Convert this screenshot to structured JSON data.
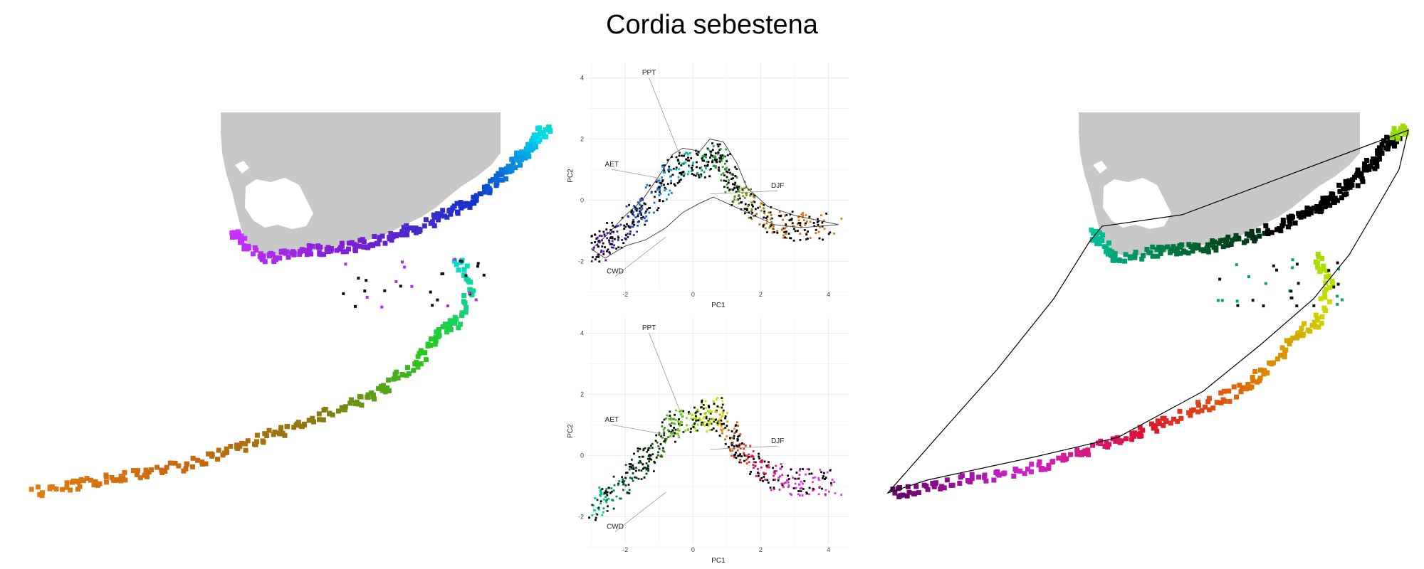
{
  "title": "Cordia sebestena",
  "colors": {
    "land": "#c8c8c8",
    "grid": "#ebebeb",
    "points_black": "#000000",
    "palette_left": [
      "#cc33ff",
      "#7a1fd0",
      "#1133cc",
      "#00ddee",
      "#22cc22",
      "#8a7a10",
      "#c86810",
      "#e08010"
    ],
    "palette_right": [
      "#00c8a0",
      "#006830",
      "#000000",
      "#66dd00",
      "#ccdd00",
      "#dd7700",
      "#dd1133",
      "#cc22cc",
      "#600060"
    ]
  },
  "chart_data": [
    {
      "type": "map",
      "panel": "left-map",
      "description_palette": "left"
    },
    {
      "type": "scatter",
      "panel": "top-biplot",
      "xlabel": "PC1",
      "ylabel": "PC2",
      "xlim": [
        -3.1,
        4.6
      ],
      "ylim": [
        -2.9,
        4.5
      ],
      "xticks": [
        -2,
        0,
        2,
        4
      ],
      "yticks": [
        -2,
        0,
        2,
        4
      ],
      "vectors": [
        {
          "label": "PPT",
          "x": -0.4,
          "y": 1.5
        },
        {
          "label": "AET",
          "x": -0.9,
          "y": 0.7
        },
        {
          "label": "DJF",
          "x": 0.5,
          "y": 0.2
        },
        {
          "label": "CWD",
          "x": -0.8,
          "y": -1.2
        }
      ]
    },
    {
      "type": "scatter",
      "panel": "bottom-biplot",
      "xlabel": "PC1",
      "ylabel": "PC2",
      "xlim": [
        -3.1,
        4.6
      ],
      "ylim": [
        -2.9,
        4.5
      ],
      "xticks": [
        -2,
        0,
        2,
        4
      ],
      "yticks": [
        -2,
        0,
        2,
        4
      ],
      "vectors": [
        {
          "label": "PPT",
          "x": -0.4,
          "y": 1.5
        },
        {
          "label": "AET",
          "x": -0.9,
          "y": 0.7
        },
        {
          "label": "DJF",
          "x": 0.5,
          "y": 0.2
        },
        {
          "label": "CWD",
          "x": -0.8,
          "y": -1.2
        }
      ]
    },
    {
      "type": "map",
      "panel": "right-map",
      "description_palette": "right"
    }
  ]
}
